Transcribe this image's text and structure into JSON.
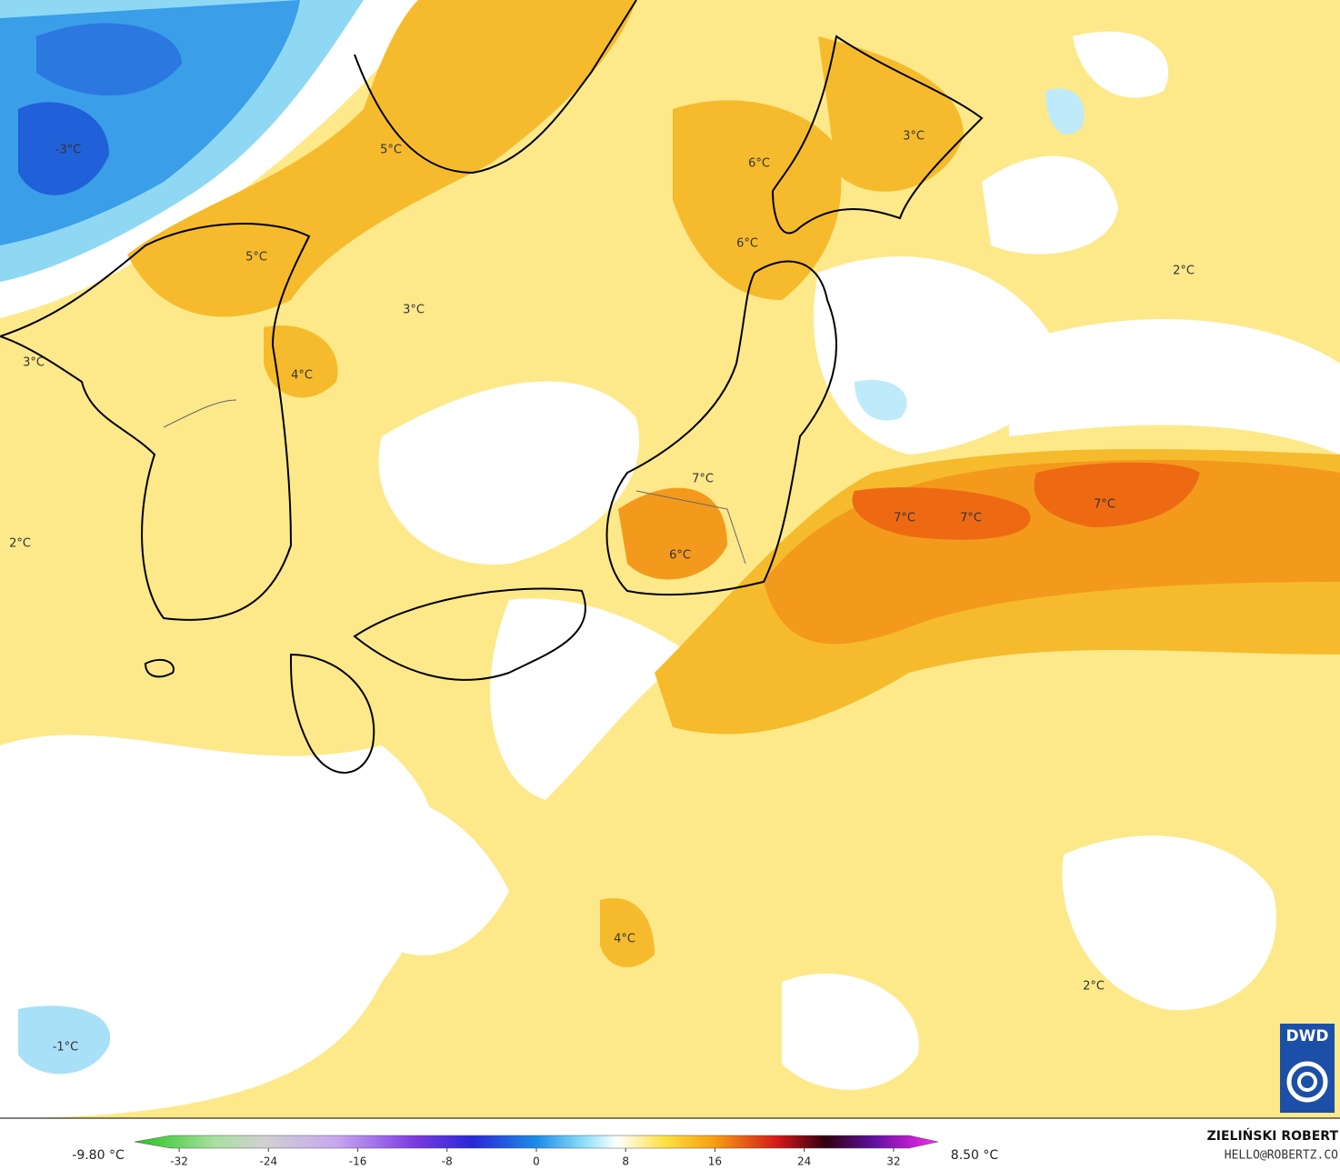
{
  "map_labels": [
    "-3°C",
    "5°C",
    "6°C",
    "3°C",
    "6°C",
    "5°C",
    "2°C",
    "3°C",
    "3°C",
    "4°C",
    "7°C",
    "7°C",
    "7°C",
    "7°C",
    "2°C",
    "6°C",
    "4°C",
    "2°C",
    "-1°C"
  ],
  "colorbar": {
    "min_label": "-9.80 °C",
    "max_label": "8.50 °C",
    "lim": [
      -36,
      36
    ],
    "ticks": [
      -32,
      -24,
      -16,
      -8,
      0,
      8,
      16,
      24,
      32
    ]
  },
  "credit": {
    "author": "ZIELIŃSKI ROBERT",
    "email": "HELLO@ROBERTZ.CO"
  },
  "logo": "DWD"
}
